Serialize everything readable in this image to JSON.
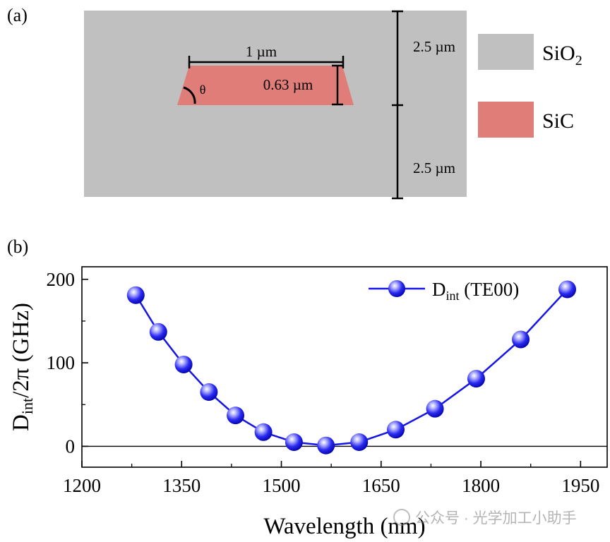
{
  "panel_a": {
    "label": "(a)",
    "width_label": "1 µm",
    "height_label": "0.63 µm",
    "angle_label": "θ",
    "top_cladding_label": "2.5 µm",
    "bottom_cladding_label": "2.5 µm",
    "legend": [
      {
        "name": "SiO",
        "subscript": "2",
        "color": "#c0c0c0"
      },
      {
        "name": "SiC",
        "subscript": "",
        "color": "#e07d79"
      }
    ]
  },
  "panel_b": {
    "label": "(b)"
  },
  "watermark": "公众号 · 光学加工小助手",
  "colors": {
    "series": "#1515e8",
    "cladding": "#c0c0c0",
    "core": "#e07d79"
  },
  "chart_data": {
    "type": "line",
    "title": "",
    "xlabel": "Wavelength (nm)",
    "ylabel_main": "D",
    "ylabel_sub": "int",
    "ylabel_rest": "/2π (GHz)",
    "xlim": [
      1200,
      1990
    ],
    "ylim": [
      -25,
      215
    ],
    "xticks": [
      1200,
      1350,
      1500,
      1650,
      1800,
      1950
    ],
    "yticks": [
      0,
      100,
      200
    ],
    "series": [
      {
        "name_main": "D",
        "name_sub": "int",
        "name_rest": " (TE00)",
        "x": [
          1281,
          1315,
          1353,
          1391,
          1431,
          1473,
          1519,
          1567,
          1617,
          1672,
          1731,
          1793,
          1860,
          1930
        ],
        "y": [
          181,
          137,
          98,
          65,
          37,
          17,
          5,
          1,
          5,
          20,
          45,
          81,
          128,
          188
        ]
      }
    ],
    "reference_line_y": 0
  }
}
